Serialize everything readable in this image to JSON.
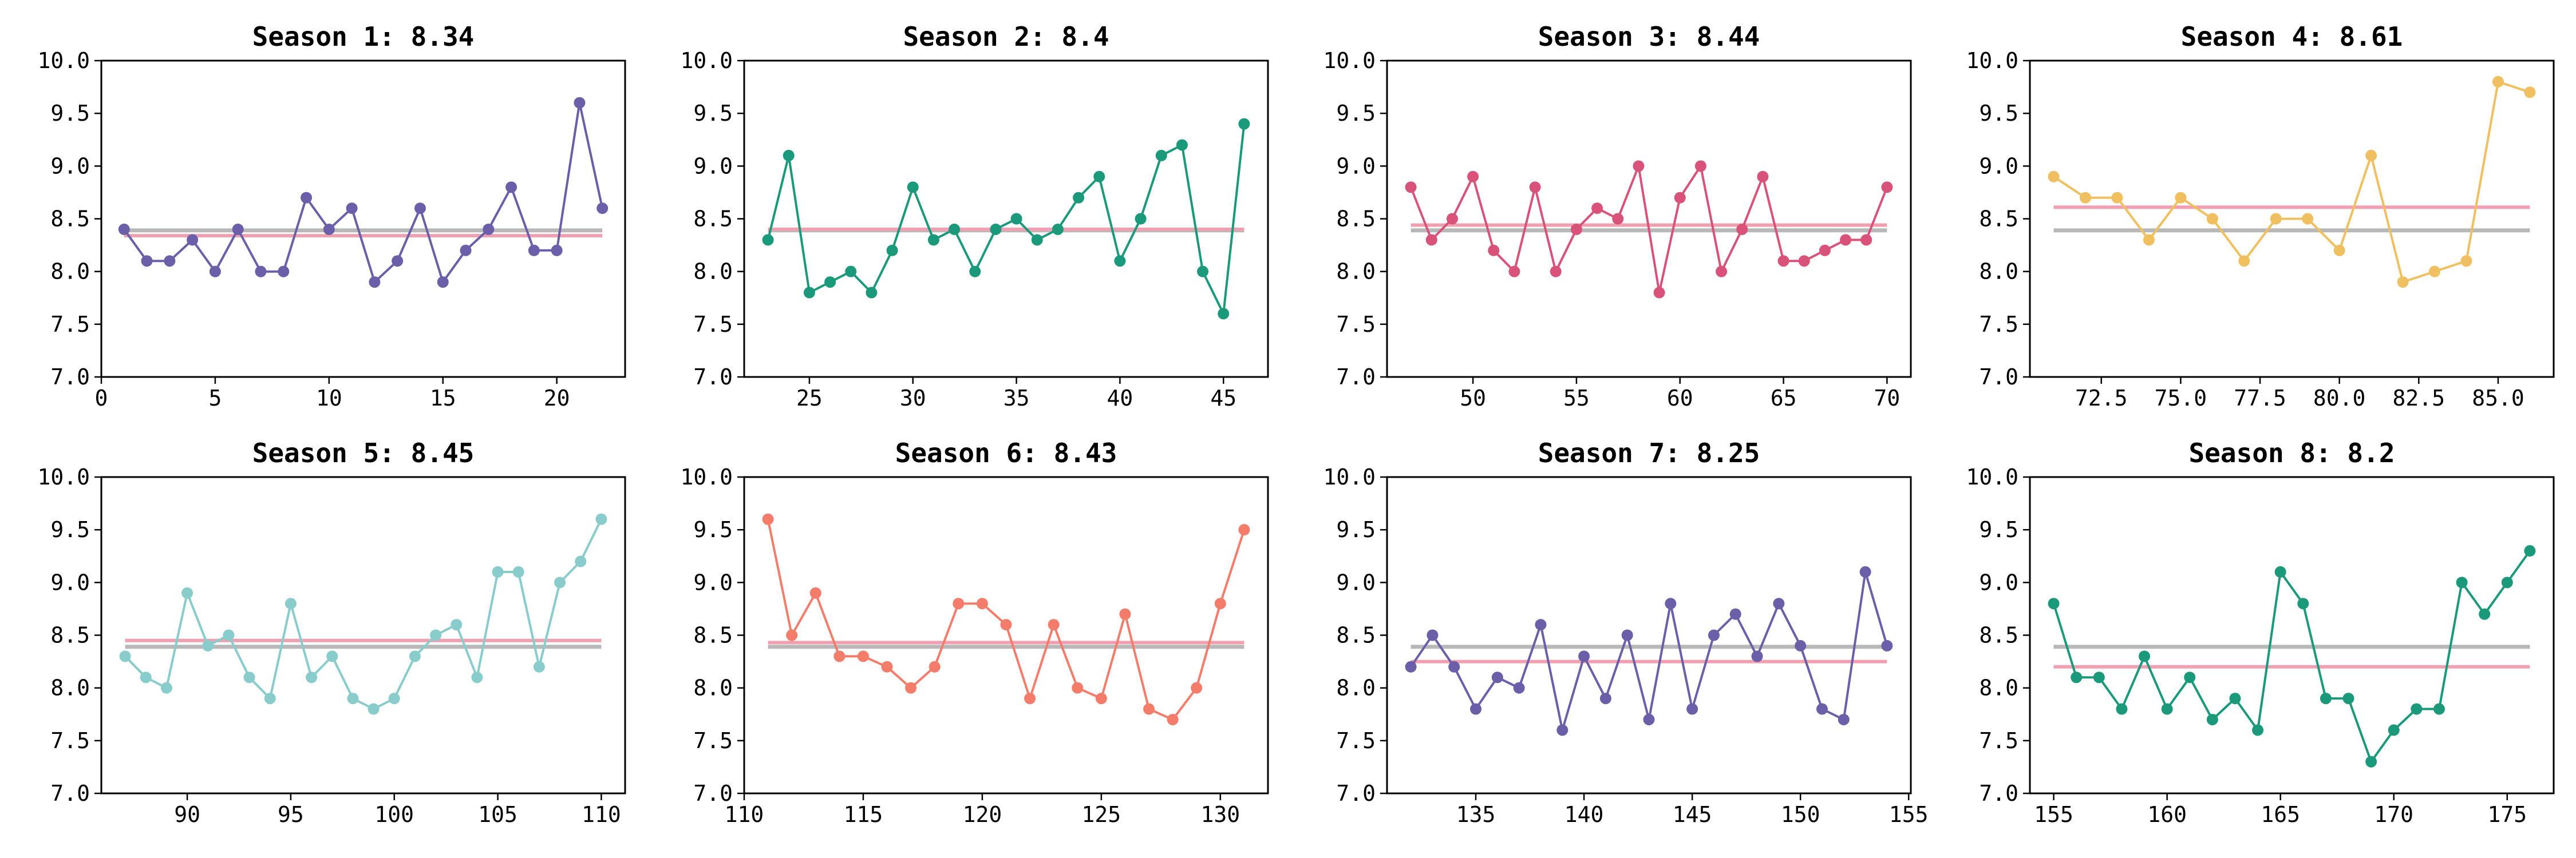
{
  "chart_data": [
    {
      "type": "line",
      "title": "Season 1: 8.34",
      "x": [
        1,
        2,
        3,
        4,
        5,
        6,
        7,
        8,
        9,
        10,
        11,
        12,
        13,
        14,
        15,
        16,
        17,
        18,
        19,
        20,
        21,
        22
      ],
      "series": [
        {
          "values": [
            8.4,
            8.1,
            8.1,
            8.3,
            8.0,
            8.4,
            8.0,
            8.0,
            8.7,
            8.4,
            8.6,
            7.9,
            8.1,
            8.6,
            7.9,
            8.2,
            8.4,
            8.8,
            8.2,
            8.2,
            9.6,
            8.6
          ],
          "color": "#6a5fa8"
        }
      ],
      "season_avg": 8.34,
      "overall_avg": 8.39,
      "xlim": [
        0,
        23
      ],
      "ylim": [
        7.0,
        10.0
      ],
      "xticks": [
        0,
        5,
        10,
        15,
        20
      ],
      "xtick_labels": [
        "0",
        "5",
        "10",
        "15",
        "20"
      ],
      "yticks": [
        "7.0",
        "7.5",
        "8.0",
        "8.5",
        "9.0",
        "9.5",
        "10.0"
      ]
    },
    {
      "type": "line",
      "title": "Season 2: 8.4",
      "x": [
        23,
        24,
        25,
        26,
        27,
        28,
        29,
        30,
        31,
        32,
        33,
        34,
        35,
        36,
        37,
        38,
        39,
        40,
        41,
        42,
        43,
        44,
        45,
        46
      ],
      "series": [
        {
          "values": [
            8.3,
            9.1,
            7.8,
            7.9,
            8.0,
            7.8,
            8.2,
            8.8,
            8.3,
            8.4,
            8.0,
            8.4,
            8.5,
            8.3,
            8.4,
            8.7,
            8.9,
            8.1,
            8.5,
            9.1,
            9.2,
            8.0,
            7.6,
            9.4
          ],
          "color": "#1a9a7b"
        }
      ],
      "season_avg": 8.4,
      "overall_avg": 8.39,
      "xlim": [
        21.85,
        47.15
      ],
      "ylim": [
        7.0,
        10.0
      ],
      "xticks": [
        25,
        30,
        35,
        40,
        45
      ],
      "xtick_labels": [
        "25",
        "30",
        "35",
        "40",
        "45"
      ],
      "yticks": [
        "7.0",
        "7.5",
        "8.0",
        "8.5",
        "9.0",
        "9.5",
        "10.0"
      ]
    },
    {
      "type": "line",
      "title": "Season 3: 8.44",
      "x": [
        47,
        48,
        49,
        50,
        51,
        52,
        53,
        54,
        55,
        56,
        57,
        58,
        59,
        60,
        61,
        62,
        63,
        64,
        65,
        66,
        67,
        68,
        69,
        70
      ],
      "series": [
        {
          "values": [
            8.8,
            8.3,
            8.5,
            8.9,
            8.2,
            8.0,
            8.8,
            8.0,
            8.4,
            8.6,
            8.5,
            9.0,
            7.8,
            8.7,
            9.0,
            8.0,
            8.4,
            8.9,
            8.1,
            8.1,
            8.2,
            8.3,
            8.3,
            8.8
          ],
          "color": "#d9527a"
        }
      ],
      "season_avg": 8.44,
      "overall_avg": 8.39,
      "xlim": [
        45.85,
        71.15
      ],
      "ylim": [
        7.0,
        10.0
      ],
      "xticks": [
        50,
        55,
        60,
        65,
        70
      ],
      "xtick_labels": [
        "50",
        "55",
        "60",
        "65",
        "70"
      ],
      "yticks": [
        "7.0",
        "7.5",
        "8.0",
        "8.5",
        "9.0",
        "9.5",
        "10.0"
      ]
    },
    {
      "type": "line",
      "title": "Season 4: 8.61",
      "x": [
        71,
        72,
        73,
        74,
        75,
        76,
        77,
        78,
        79,
        80,
        81,
        82,
        83,
        84,
        85,
        86
      ],
      "series": [
        {
          "values": [
            8.9,
            8.7,
            8.7,
            8.3,
            8.7,
            8.5,
            8.1,
            8.5,
            8.5,
            8.2,
            9.1,
            7.9,
            8.0,
            8.1,
            9.8,
            9.7
          ],
          "color": "#f0c060"
        }
      ],
      "season_avg": 8.61,
      "overall_avg": 8.39,
      "xlim": [
        70.25,
        86.75
      ],
      "ylim": [
        7.0,
        10.0
      ],
      "xticks": [
        72.5,
        75.0,
        77.5,
        80.0,
        82.5,
        85.0
      ],
      "xtick_labels": [
        "72.5",
        "75.0",
        "77.5",
        "80.0",
        "82.5",
        "85.0"
      ],
      "yticks": [
        "7.0",
        "7.5",
        "8.0",
        "8.5",
        "9.0",
        "9.5",
        "10.0"
      ]
    },
    {
      "type": "line",
      "title": "Season 5: 8.45",
      "x": [
        87,
        88,
        89,
        90,
        91,
        92,
        93,
        94,
        95,
        96,
        97,
        98,
        99,
        100,
        101,
        102,
        103,
        104,
        105,
        106,
        107,
        108,
        109,
        110
      ],
      "series": [
        {
          "values": [
            8.3,
            8.1,
            8.0,
            8.9,
            8.4,
            8.5,
            8.1,
            7.9,
            8.8,
            8.1,
            8.3,
            7.9,
            7.8,
            7.9,
            8.3,
            8.5,
            8.6,
            8.1,
            9.1,
            9.1,
            8.2,
            9.0,
            9.2,
            9.6
          ],
          "color": "#88cccc"
        }
      ],
      "season_avg": 8.45,
      "overall_avg": 8.39,
      "xlim": [
        85.85,
        111.15
      ],
      "ylim": [
        7.0,
        10.0
      ],
      "xticks": [
        90,
        95,
        100,
        105,
        110
      ],
      "xtick_labels": [
        "90",
        "95",
        "100",
        "105",
        "110"
      ],
      "yticks": [
        "7.0",
        "7.5",
        "8.0",
        "8.5",
        "9.0",
        "9.5",
        "10.0"
      ]
    },
    {
      "type": "line",
      "title": "Season 6: 8.43",
      "x": [
        111,
        112,
        113,
        114,
        115,
        116,
        117,
        118,
        119,
        120,
        121,
        122,
        123,
        124,
        125,
        126,
        127,
        128,
        129,
        130,
        131
      ],
      "series": [
        {
          "values": [
            9.6,
            8.5,
            8.9,
            8.3,
            8.3,
            8.2,
            8.0,
            8.2,
            8.8,
            8.8,
            8.6,
            7.9,
            8.6,
            8.0,
            7.9,
            8.7,
            7.8,
            7.7,
            8.0,
            8.8,
            9.5
          ],
          "color": "#f47c6a"
        }
      ],
      "season_avg": 8.43,
      "overall_avg": 8.39,
      "xlim": [
        110.0,
        132.0
      ],
      "ylim": [
        7.0,
        10.0
      ],
      "xticks": [
        110,
        115,
        120,
        125,
        130
      ],
      "xtick_labels": [
        "110",
        "115",
        "120",
        "125",
        "130"
      ],
      "yticks": [
        "7.0",
        "7.5",
        "8.0",
        "8.5",
        "9.0",
        "9.5",
        "10.0"
      ]
    },
    {
      "type": "line",
      "title": "Season 7: 8.25",
      "x": [
        132,
        133,
        134,
        135,
        136,
        137,
        138,
        139,
        140,
        141,
        142,
        143,
        144,
        145,
        146,
        147,
        148,
        149,
        150,
        151,
        152,
        153,
        154
      ],
      "series": [
        {
          "values": [
            8.2,
            8.5,
            8.2,
            7.8,
            8.1,
            8.0,
            8.6,
            7.6,
            8.3,
            7.9,
            8.5,
            7.7,
            8.8,
            7.8,
            8.5,
            8.7,
            8.3,
            8.8,
            8.4,
            7.8,
            7.7,
            9.1,
            8.4
          ],
          "color": "#6a5fa8"
        }
      ],
      "season_avg": 8.25,
      "overall_avg": 8.39,
      "xlim": [
        130.9,
        155.1
      ],
      "ylim": [
        7.0,
        10.0
      ],
      "xticks": [
        135,
        140,
        145,
        150,
        155
      ],
      "xtick_labels": [
        "135",
        "140",
        "145",
        "150",
        "155"
      ],
      "yticks": [
        "7.0",
        "7.5",
        "8.0",
        "8.5",
        "9.0",
        "9.5",
        "10.0"
      ]
    },
    {
      "type": "line",
      "title": "Season 8: 8.2",
      "x": [
        155,
        156,
        157,
        158,
        159,
        160,
        161,
        162,
        163,
        164,
        165,
        166,
        167,
        168,
        169,
        170,
        171,
        172,
        173,
        174,
        175,
        176
      ],
      "series": [
        {
          "values": [
            8.8,
            8.1,
            8.1,
            7.8,
            8.3,
            7.8,
            8.1,
            7.7,
            7.9,
            7.6,
            9.1,
            8.8,
            7.9,
            7.9,
            7.3,
            7.6,
            7.8,
            7.8,
            9.0,
            8.7,
            9.0,
            9.3
          ],
          "color": "#1a9a7b"
        }
      ],
      "season_avg": 8.2,
      "overall_avg": 8.39,
      "xlim": [
        153.95,
        177.05
      ],
      "ylim": [
        7.0,
        10.0
      ],
      "xticks": [
        155,
        160,
        165,
        170,
        175
      ],
      "xtick_labels": [
        "155",
        "160",
        "165",
        "170",
        "175"
      ],
      "yticks": [
        "7.0",
        "7.5",
        "8.0",
        "8.5",
        "9.0",
        "9.5",
        "10.0"
      ]
    }
  ],
  "style": {
    "season_avg_color": "#f0a0b0",
    "overall_avg_color": "#b8b8b8",
    "grid": false,
    "legend": "none"
  }
}
